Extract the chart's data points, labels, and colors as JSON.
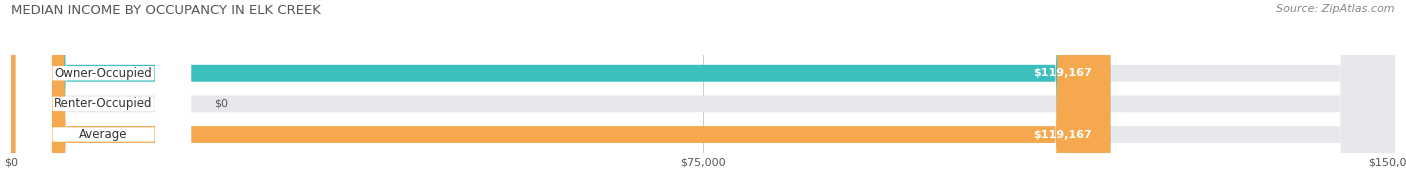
{
  "title": "MEDIAN INCOME BY OCCUPANCY IN ELK CREEK",
  "source": "Source: ZipAtlas.com",
  "categories": [
    "Owner-Occupied",
    "Renter-Occupied",
    "Average"
  ],
  "values": [
    119167,
    0,
    119167
  ],
  "bar_colors": [
    "#3bbfbf",
    "#c9a8d4",
    "#f5a84e"
  ],
  "label_values": [
    "$119,167",
    "$0",
    "$119,167"
  ],
  "xlim": [
    0,
    150000
  ],
  "xticks": [
    0,
    75000,
    150000
  ],
  "xtick_labels": [
    "$0",
    "$75,000",
    "$150,000"
  ],
  "bar_height": 0.55,
  "figsize": [
    14.06,
    1.96
  ],
  "dpi": 100
}
